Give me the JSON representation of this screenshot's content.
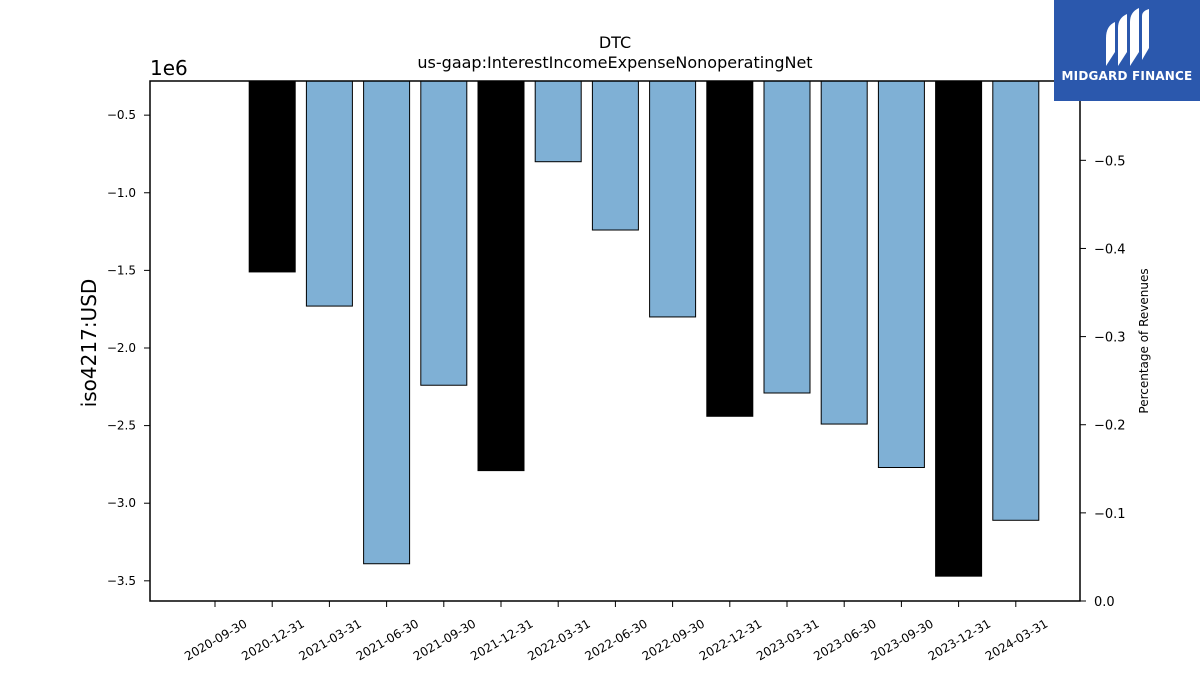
{
  "chart_data": {
    "type": "bar",
    "title": "DTC",
    "subtitle": "us-gaap:InterestIncomeExpenseNonoperatingNet",
    "ylabel": "iso4217:USD",
    "y_offset_label": "1e6",
    "y2label": "Percentage of Revenues",
    "categories": [
      "2020-09-30",
      "2020-12-31",
      "2021-03-31",
      "2021-06-30",
      "2021-09-30",
      "2021-12-31",
      "2022-03-31",
      "2022-06-30",
      "2022-09-30",
      "2022-12-31",
      "2023-03-31",
      "2023-06-30",
      "2023-09-30",
      "2023-12-31",
      "2024-03-31"
    ],
    "values": [
      null,
      -1510000,
      -1730000,
      -3390000,
      -2240000,
      -2790000,
      -800000,
      -1240000,
      -1800000,
      -2440000,
      -2290000,
      -2490000,
      -2770000,
      -3470000,
      -3110000
    ],
    "bar_colors": [
      "#7fb0d5",
      "#000000",
      "#7fb0d5",
      "#7fb0d5",
      "#7fb0d5",
      "#000000",
      "#7fb0d5",
      "#7fb0d5",
      "#7fb0d5",
      "#000000",
      "#7fb0d5",
      "#7fb0d5",
      "#7fb0d5",
      "#000000",
      "#7fb0d5"
    ],
    "ylim": [
      -3.63,
      -0.28
    ],
    "yticks": [
      -0.5,
      -1.0,
      -1.5,
      -2.0,
      -2.5,
      -3.0,
      -3.5
    ],
    "ytick_labels": [
      "−0.5",
      "−1.0",
      "−1.5",
      "−2.0",
      "−2.5",
      "−3.0",
      "−3.5"
    ],
    "y2lim": [
      0.0,
      -0.59
    ],
    "y2ticks": [
      -0.5,
      -0.4,
      -0.3,
      -0.2,
      -0.1,
      0.0
    ],
    "y2tick_labels": [
      "−0.5",
      "−0.4",
      "−0.3",
      "−0.2",
      "−0.1",
      "0.0"
    ],
    "grid": false,
    "colors": {
      "quarter": "#7fb0d5",
      "year_end": "#000000"
    }
  },
  "logo": {
    "text": "MIDGARD FINANCE",
    "background": "#2b58ad",
    "icon": "midgard-logo-icon"
  }
}
